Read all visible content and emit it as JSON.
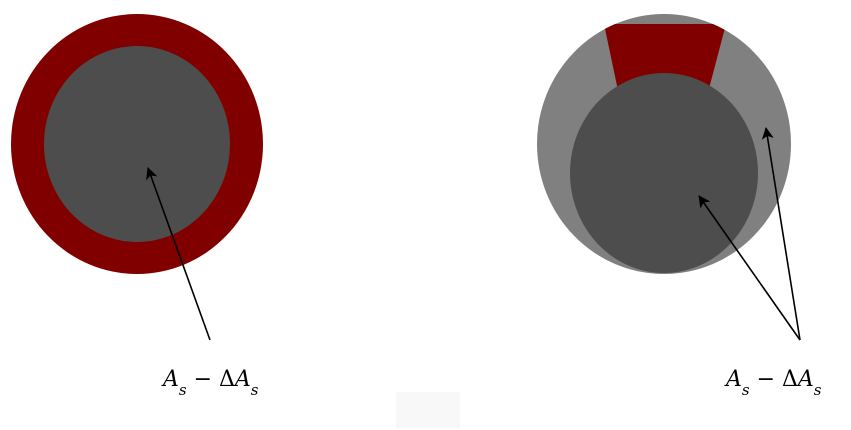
{
  "colors": {
    "dark_red": "#800000",
    "dark_gray": "#4d4d4d",
    "light_gray": "#808080",
    "arrow": "#000000",
    "background": "#ffffff",
    "blank_box": "#f8f8f8"
  },
  "left_figure": {
    "label": {
      "main": "A",
      "sub": "s",
      "operator": " − Δ",
      "main2": "A",
      "sub2": "s"
    }
  },
  "right_figure": {
    "label": {
      "main": "A",
      "sub": "s",
      "operator": " − Δ",
      "main2": "A",
      "sub2": "s"
    }
  }
}
